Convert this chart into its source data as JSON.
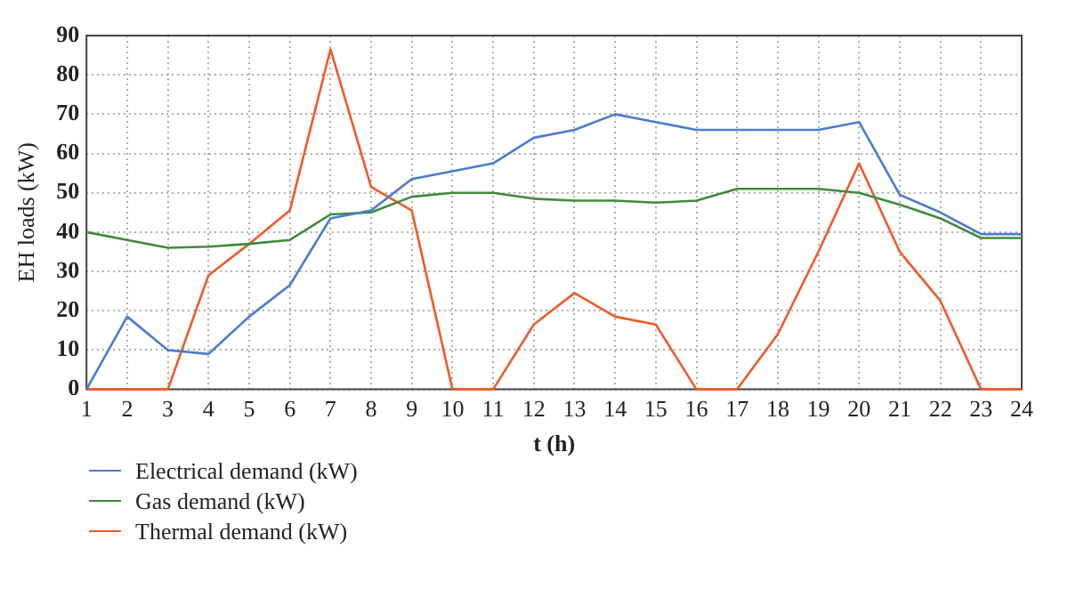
{
  "chart_data": {
    "type": "line",
    "xlabel": "t (h)",
    "ylabel": "EH loads (kW)",
    "x": [
      1,
      2,
      3,
      4,
      5,
      6,
      7,
      8,
      9,
      10,
      11,
      12,
      13,
      14,
      15,
      16,
      17,
      18,
      19,
      20,
      21,
      22,
      23,
      24
    ],
    "xlim": [
      1,
      24
    ],
    "xticks": [
      1,
      2,
      3,
      4,
      5,
      6,
      7,
      8,
      9,
      10,
      11,
      12,
      13,
      14,
      15,
      16,
      17,
      18,
      19,
      20,
      21,
      22,
      23,
      24
    ],
    "ylim": [
      0,
      90
    ],
    "yticks": [
      0,
      10,
      20,
      30,
      40,
      50,
      60,
      70,
      80,
      90
    ],
    "grid": true,
    "legend": "bottom left",
    "marker": "none",
    "line_style": "solid",
    "series": [
      {
        "name": "Electrical demand (kW)",
        "color": "#4a7bd0",
        "values": [
          0,
          18.5,
          10,
          9,
          18.5,
          26.5,
          43.5,
          45.5,
          53.5,
          55.5,
          57.5,
          64,
          66,
          70,
          68,
          66,
          66,
          66,
          66,
          68,
          49.5,
          45,
          39.5,
          39.5
        ]
      },
      {
        "name": "Gas demand (kW)",
        "color": "#3f8a3a",
        "values": [
          40,
          38,
          36,
          36.3,
          37,
          38,
          44.5,
          45,
          49,
          50,
          50,
          48.5,
          48,
          48,
          47.5,
          48,
          51,
          51,
          51,
          50,
          47,
          43.5,
          38.5,
          38.5
        ]
      },
      {
        "name": "Thermal demand (kW)",
        "color": "#f05a28",
        "values": [
          0,
          0,
          0,
          29,
          37,
          45.5,
          86.5,
          51.5,
          45.5,
          0,
          0,
          16.5,
          24.5,
          18.5,
          16.5,
          0,
          0,
          14,
          35,
          57.5,
          35,
          22.5,
          0,
          0
        ]
      }
    ]
  }
}
